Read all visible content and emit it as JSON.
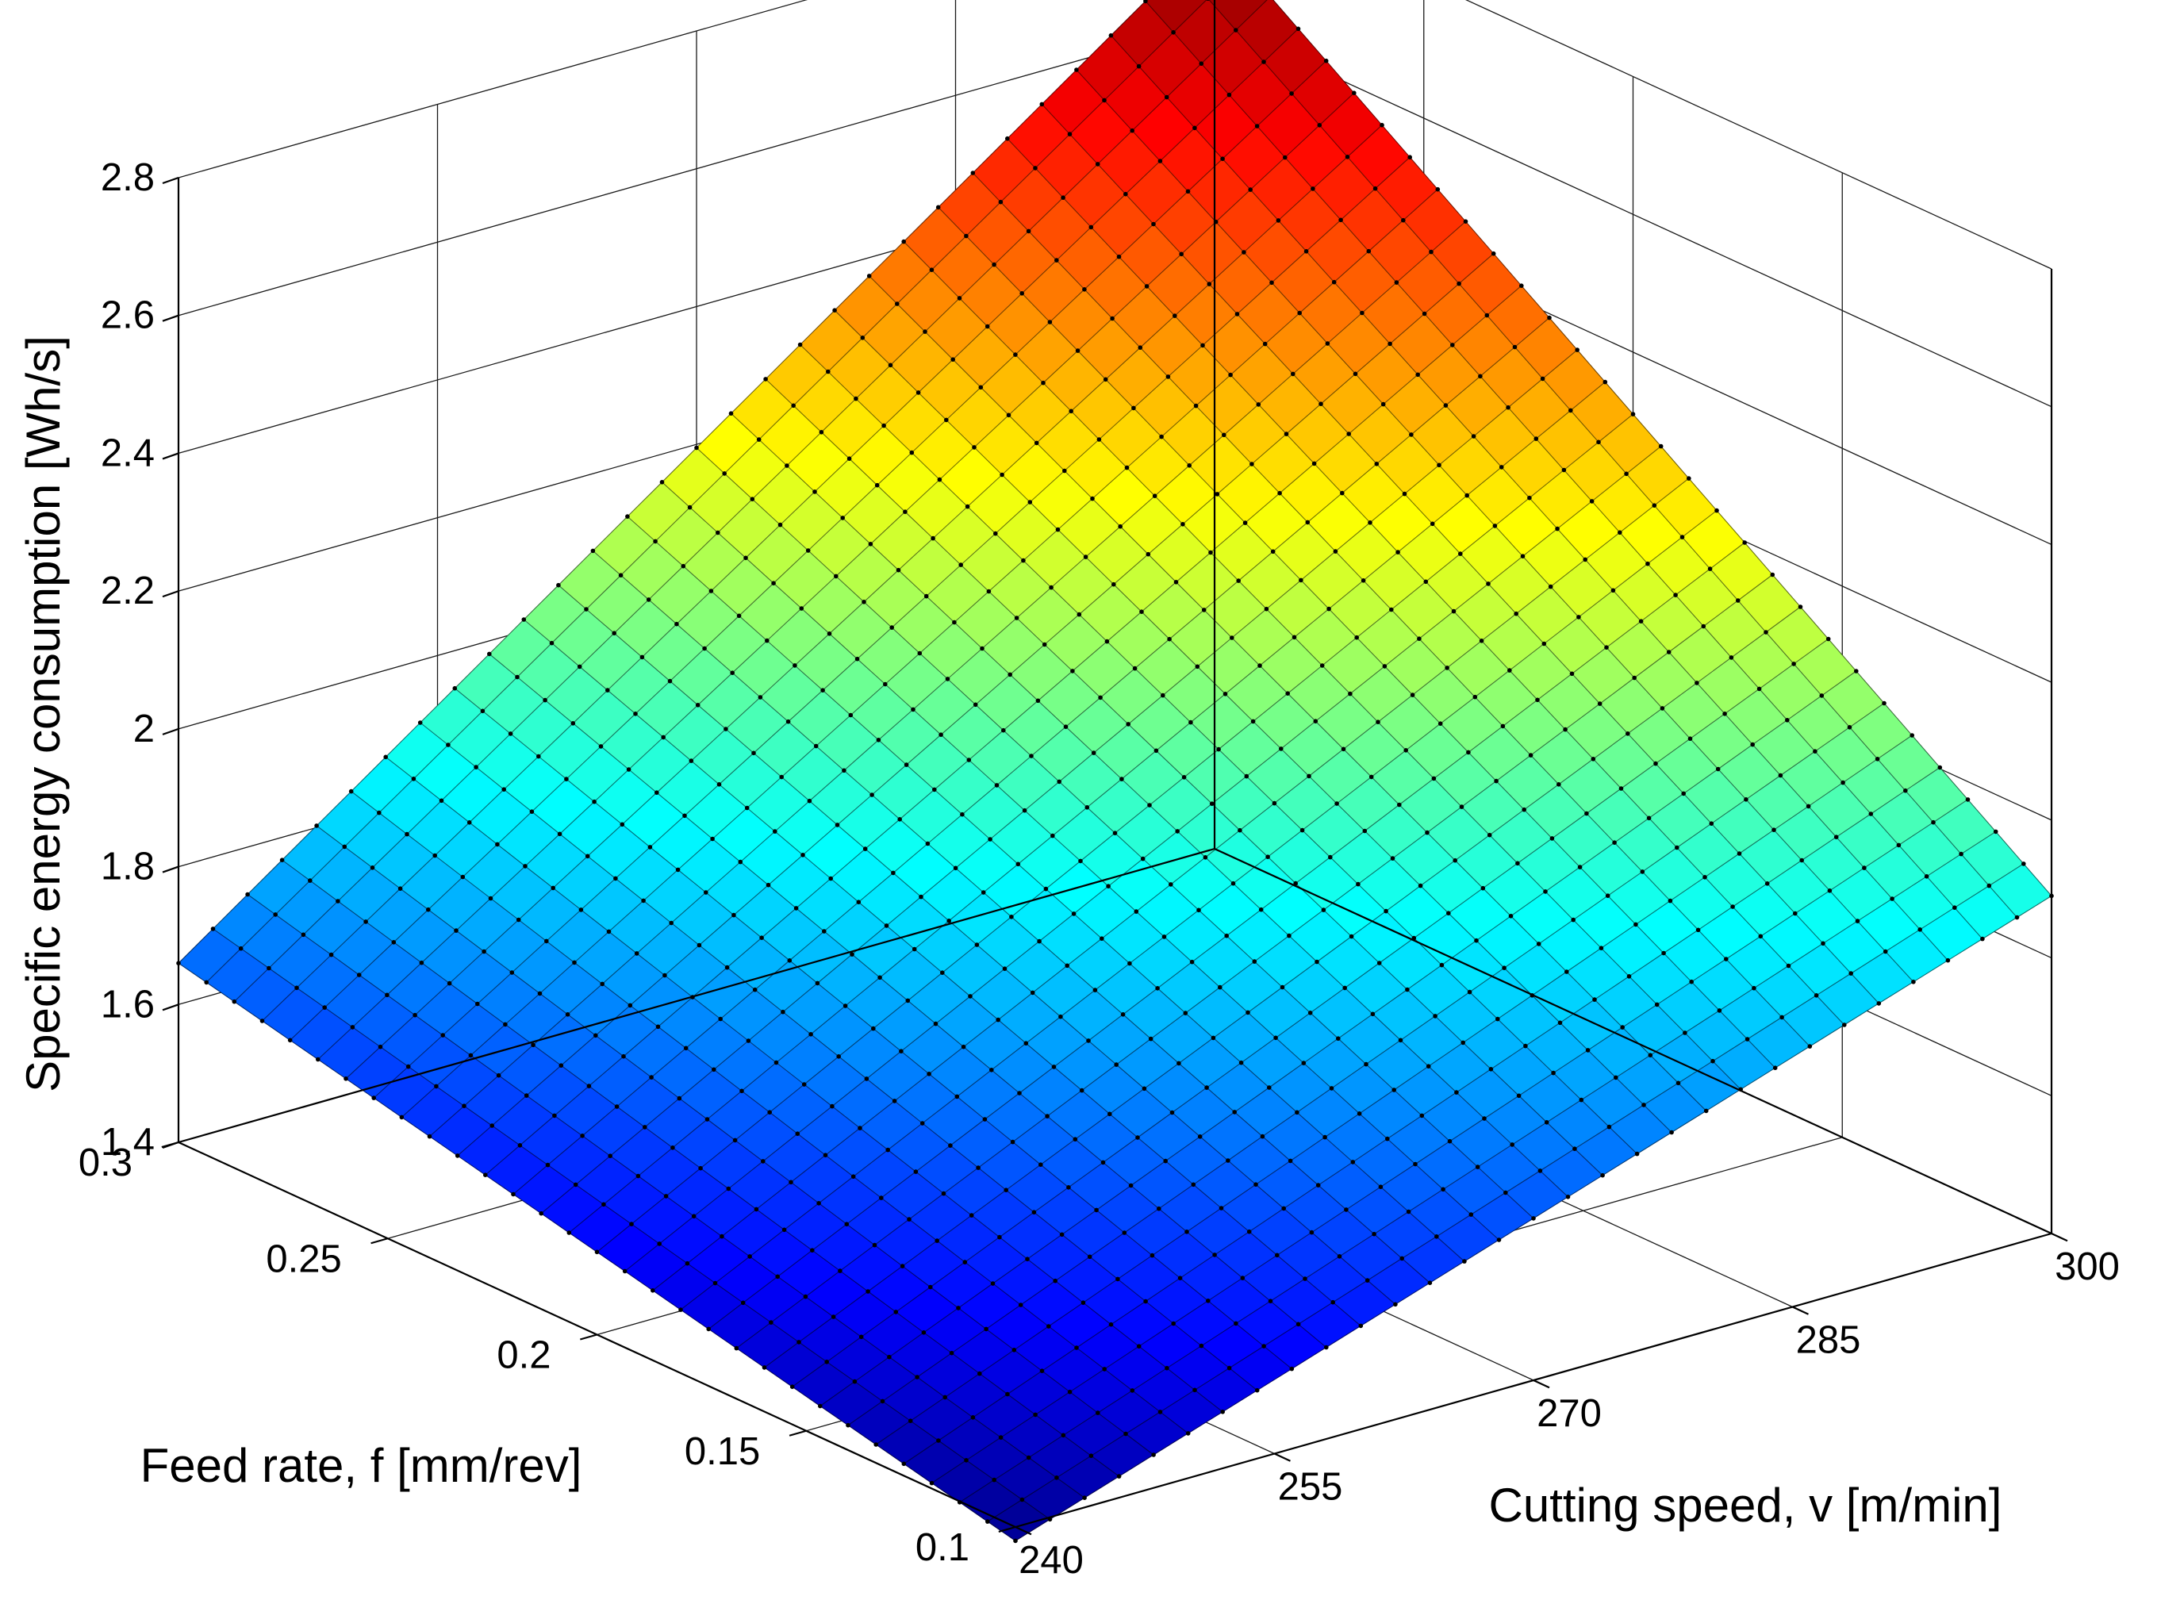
{
  "chart_data": {
    "type": "surface3d",
    "title": "",
    "xlabel": "Cutting speed, v [m/min]",
    "ylabel": "Feed rate, f [mm/rev]",
    "zlabel": "Specific energy consumption [Wh/s]",
    "xlim": [
      240,
      300
    ],
    "ylim": [
      0.1,
      0.3
    ],
    "zlim": [
      1.4,
      2.8
    ],
    "x_ticks": [
      240,
      255,
      270,
      285,
      300
    ],
    "x_tick_labels": [
      "240",
      "255",
      "270",
      "285",
      "300"
    ],
    "y_ticks": [
      0.1,
      0.15,
      0.2,
      0.25,
      0.3
    ],
    "y_tick_labels": [
      "0.1",
      "0.15",
      "0.2",
      "0.25",
      "0.3"
    ],
    "z_ticks": [
      1.4,
      1.6,
      1.8,
      2.0,
      2.2,
      2.4,
      2.6,
      2.8
    ],
    "z_tick_labels": [
      "1.4",
      "1.6",
      "1.8",
      "2",
      "2.2",
      "2.4",
      "2.6",
      "2.8"
    ],
    "grid": true,
    "colormap": "jet",
    "colormap_stops": [
      "#00008f",
      "#0000ff",
      "#00ffff",
      "#ffff00",
      "#ff0000",
      "#800000"
    ],
    "mesh_resolution": 31,
    "corner_values": [
      {
        "v": 240,
        "f": 0.1,
        "value": 1.38
      },
      {
        "v": 300,
        "f": 0.1,
        "value": 1.89
      },
      {
        "v": 240,
        "f": 0.3,
        "value": 1.66
      },
      {
        "v": 300,
        "f": 0.3,
        "value": 2.73
      }
    ]
  }
}
